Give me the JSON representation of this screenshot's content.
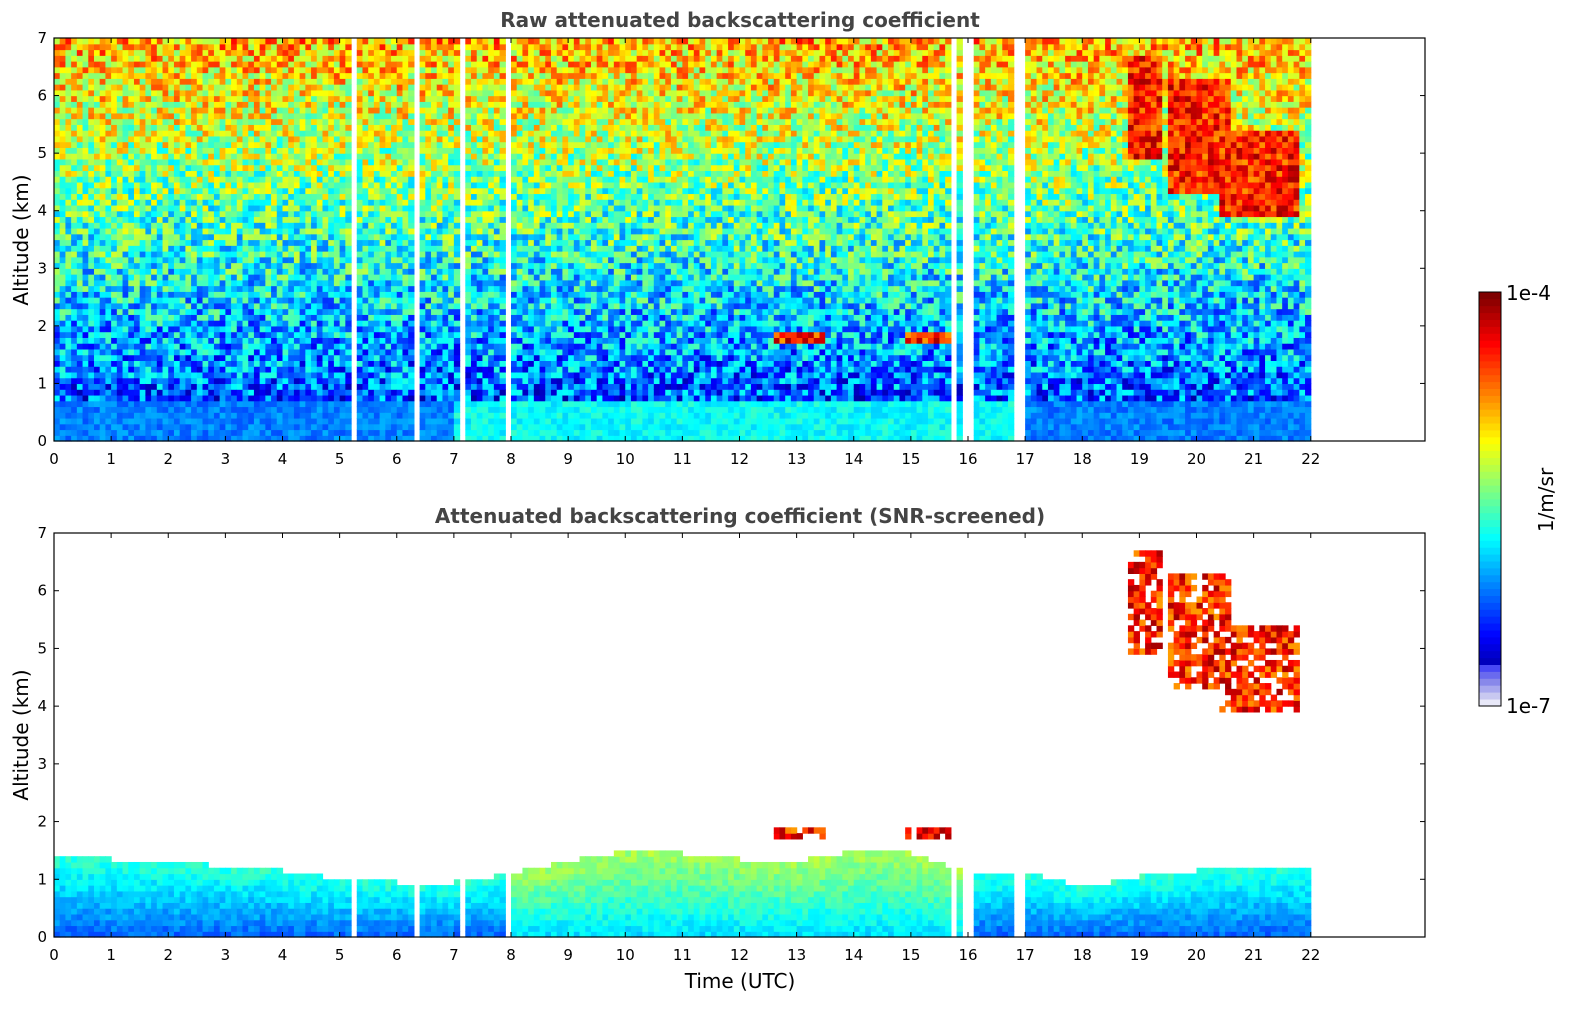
{
  "colors": {
    "jet": [
      "#00007f",
      "#0000ff",
      "#007fff",
      "#00ffff",
      "#7fff7f",
      "#ffff00",
      "#ff7f00",
      "#ff0000",
      "#7f0000"
    ],
    "lightblue_bins": [
      "#e8e8f8",
      "#c8c8f0",
      "#a8a8ee",
      "#8888ea",
      "#6a6aee",
      "#4848f4"
    ]
  },
  "chart_data": [
    {
      "type": "heatmap",
      "title": "Raw attenuated backscattering coefficient",
      "xlabel": "",
      "ylabel": "Altitude (km)",
      "xlim": [
        0,
        24
      ],
      "ylim": [
        0,
        7
      ],
      "x_ticks": [
        0,
        1,
        2,
        3,
        4,
        5,
        6,
        7,
        8,
        9,
        10,
        11,
        12,
        13,
        14,
        15,
        16,
        17,
        18,
        19,
        20,
        21,
        22
      ],
      "y_ticks": [
        0,
        1,
        2,
        3,
        4,
        5,
        6,
        7
      ],
      "data_extent_hours": [
        0,
        22
      ],
      "data_gaps_hours": [
        [
          5.25,
          5.3
        ],
        [
          6.28,
          6.42
        ],
        [
          7.08,
          7.18
        ],
        [
          7.9,
          7.95
        ],
        [
          15.7,
          15.78
        ],
        [
          15.9,
          16.12
        ],
        [
          16.85,
          16.95
        ]
      ],
      "clouds": [
        {
          "x": [
            18.8,
            19.4
          ],
          "y": [
            4.9,
            6.7
          ]
        },
        {
          "x": [
            19.5,
            20.6
          ],
          "y": [
            4.3,
            6.3
          ]
        },
        {
          "x": [
            20.4,
            21.8
          ],
          "y": [
            3.9,
            5.4
          ]
        },
        {
          "x": [
            14.9,
            15.7
          ],
          "y": [
            1.75,
            1.9
          ]
        },
        {
          "x": [
            12.6,
            13.5
          ],
          "y": [
            1.7,
            1.85
          ]
        }
      ]
    },
    {
      "type": "heatmap",
      "title": "Attenuated backscattering coefficient (SNR-screened)",
      "xlabel": "Time (UTC)",
      "ylabel": "Altitude (km)",
      "xlim": [
        0,
        24
      ],
      "ylim": [
        0,
        7
      ],
      "x_ticks": [
        0,
        1,
        2,
        3,
        4,
        5,
        6,
        7,
        8,
        9,
        10,
        11,
        12,
        13,
        14,
        15,
        16,
        17,
        18,
        19,
        20,
        21,
        22
      ],
      "y_ticks": [
        0,
        1,
        2,
        3,
        4,
        5,
        6,
        7
      ],
      "data_extent_hours": [
        0,
        22
      ],
      "data_gaps_hours": [
        [
          5.25,
          5.3
        ],
        [
          6.28,
          6.42
        ],
        [
          7.08,
          7.18
        ],
        [
          7.9,
          7.95
        ],
        [
          15.7,
          15.78
        ],
        [
          15.9,
          16.12
        ],
        [
          16.85,
          16.95
        ]
      ],
      "boundary_layer_top_km": [
        [
          0,
          1.4
        ],
        [
          2,
          1.3
        ],
        [
          4,
          1.15
        ],
        [
          5,
          1.0
        ],
        [
          6,
          0.95
        ],
        [
          7,
          0.95
        ],
        [
          8,
          1.1
        ],
        [
          9,
          1.3
        ],
        [
          10,
          1.5
        ],
        [
          11,
          1.45
        ],
        [
          12,
          1.35
        ],
        [
          13,
          1.3
        ],
        [
          14,
          1.5
        ],
        [
          15,
          1.45
        ],
        [
          16,
          1.1
        ],
        [
          17,
          1.15
        ],
        [
          18,
          0.85
        ],
        [
          19,
          1.05
        ],
        [
          20,
          1.15
        ],
        [
          21,
          1.2
        ],
        [
          22,
          1.2
        ]
      ],
      "clouds": [
        {
          "x": [
            18.8,
            19.4
          ],
          "y": [
            4.9,
            6.7
          ]
        },
        {
          "x": [
            19.5,
            20.6
          ],
          "y": [
            4.3,
            6.3
          ]
        },
        {
          "x": [
            20.4,
            21.8
          ],
          "y": [
            3.9,
            5.4
          ]
        },
        {
          "x": [
            14.9,
            15.7
          ],
          "y": [
            1.75,
            1.9
          ]
        },
        {
          "x": [
            12.6,
            13.5
          ],
          "y": [
            1.7,
            1.85
          ]
        }
      ]
    }
  ],
  "colorbar": {
    "top_label": "1e-4",
    "bottom_label": "1e-7",
    "unit_label": "1/m/sr",
    "range": [
      1e-07,
      0.0001
    ],
    "scale": "log"
  }
}
